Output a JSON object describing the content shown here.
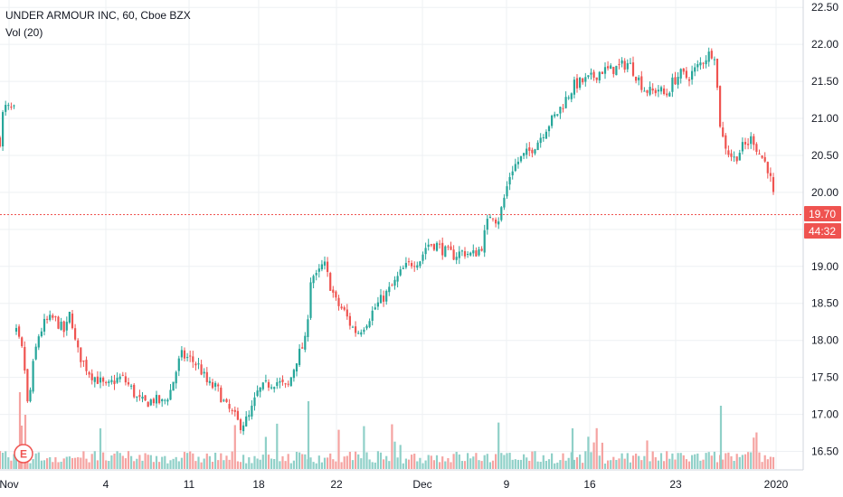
{
  "header": {
    "title": "UNDER ARMOUR INC, 60, Cboe BZX",
    "volume_label": "Vol (20)"
  },
  "price_tag": {
    "value": "19.70",
    "countdown": "44:32"
  },
  "earnings_marker": {
    "label": "E"
  },
  "colors": {
    "up": "#26a69a",
    "down": "#ef5350",
    "up_volume": "#8fd0c8",
    "down_volume": "#f5a3a1",
    "grid": "#eef0f3",
    "axis_text": "#131722",
    "price_line": "#ef5350",
    "tag": "#ef5350"
  },
  "chart_data": {
    "type": "candlestick",
    "title": "UNDER ARMOUR INC, 60, Cboe BZX",
    "y_axis": {
      "range": [
        16.25,
        22.6
      ],
      "ticks": [
        "16.50",
        "17.00",
        "17.50",
        "18.00",
        "18.50",
        "19.00",
        "19.50",
        "20.00",
        "20.50",
        "21.00",
        "21.50",
        "22.00",
        "22.50"
      ]
    },
    "x_axis": {
      "tick_labels": [
        "Nov",
        "4",
        "11",
        "18",
        "22",
        "Dec",
        "9",
        "16",
        "23",
        "2020"
      ]
    },
    "last_price": 19.7,
    "volume_series_name": "Vol (20)",
    "price_path": [
      [
        0,
        20.7
      ],
      [
        4,
        21.15
      ],
      [
        18,
        21.1
      ],
      [
        18,
        18.1
      ],
      [
        26,
        17.8
      ],
      [
        31,
        17.05
      ],
      [
        37,
        17.7
      ],
      [
        42,
        18.05
      ],
      [
        50,
        18.25
      ],
      [
        60,
        18.3
      ],
      [
        66,
        18.2
      ],
      [
        72,
        18.1
      ],
      [
        78,
        18.4
      ],
      [
        84,
        17.9
      ],
      [
        92,
        17.7
      ],
      [
        100,
        17.55
      ],
      [
        110,
        17.45
      ],
      [
        118,
        17.35
      ],
      [
        125,
        17.45
      ],
      [
        135,
        17.5
      ],
      [
        145,
        17.35
      ],
      [
        152,
        17.2
      ],
      [
        160,
        17.15
      ],
      [
        170,
        17.2
      ],
      [
        180,
        17.15
      ],
      [
        188,
        17.3
      ],
      [
        195,
        17.6
      ],
      [
        200,
        17.8
      ],
      [
        210,
        17.75
      ],
      [
        220,
        17.65
      ],
      [
        230,
        17.4
      ],
      [
        240,
        17.35
      ],
      [
        250,
        17.1
      ],
      [
        258,
        17.0
      ],
      [
        265,
        16.85
      ],
      [
        275,
        16.95
      ],
      [
        285,
        17.3
      ],
      [
        295,
        17.4
      ],
      [
        305,
        17.45
      ],
      [
        318,
        17.35
      ],
      [
        328,
        17.75
      ],
      [
        338,
        18.0
      ],
      [
        344,
        18.9
      ],
      [
        350,
        18.85
      ],
      [
        358,
        19.05
      ],
      [
        365,
        18.75
      ],
      [
        372,
        18.5
      ],
      [
        380,
        18.4
      ],
      [
        388,
        18.2
      ],
      [
        395,
        18.1
      ],
      [
        405,
        18.25
      ],
      [
        415,
        18.45
      ],
      [
        425,
        18.6
      ],
      [
        435,
        18.75
      ],
      [
        445,
        18.95
      ],
      [
        455,
        19.05
      ],
      [
        465,
        19.1
      ],
      [
        472,
        19.3
      ],
      [
        482,
        19.3
      ],
      [
        492,
        19.2
      ],
      [
        502,
        19.15
      ],
      [
        512,
        19.2
      ],
      [
        522,
        19.15
      ],
      [
        532,
        19.25
      ],
      [
        538,
        19.55
      ],
      [
        543,
        19.75
      ],
      [
        550,
        19.6
      ],
      [
        555,
        19.8
      ],
      [
        560,
        20.05
      ],
      [
        565,
        20.3
      ],
      [
        575,
        20.45
      ],
      [
        585,
        20.55
      ],
      [
        595,
        20.7
      ],
      [
        605,
        20.9
      ],
      [
        615,
        21.05
      ],
      [
        625,
        21.25
      ],
      [
        635,
        21.45
      ],
      [
        645,
        21.5
      ],
      [
        655,
        21.55
      ],
      [
        665,
        21.65
      ],
      [
        675,
        21.65
      ],
      [
        685,
        21.7
      ],
      [
        695,
        21.75
      ],
      [
        705,
        21.55
      ],
      [
        712,
        21.4
      ],
      [
        720,
        21.35
      ],
      [
        728,
        21.4
      ],
      [
        736,
        21.3
      ],
      [
        744,
        21.5
      ],
      [
        752,
        21.6
      ],
      [
        760,
        21.55
      ],
      [
        768,
        21.65
      ],
      [
        775,
        21.75
      ],
      [
        782,
        21.85
      ],
      [
        788,
        21.9
      ],
      [
        792,
        21.85
      ],
      [
        793,
        21.4
      ],
      [
        797,
        20.8
      ],
      [
        805,
        20.55
      ],
      [
        812,
        20.45
      ],
      [
        820,
        20.6
      ],
      [
        826,
        20.65
      ],
      [
        832,
        20.75
      ],
      [
        838,
        20.55
      ],
      [
        844,
        20.45
      ],
      [
        850,
        20.3
      ],
      [
        855,
        19.95
      ],
      [
        858,
        19.7
      ]
    ]
  }
}
